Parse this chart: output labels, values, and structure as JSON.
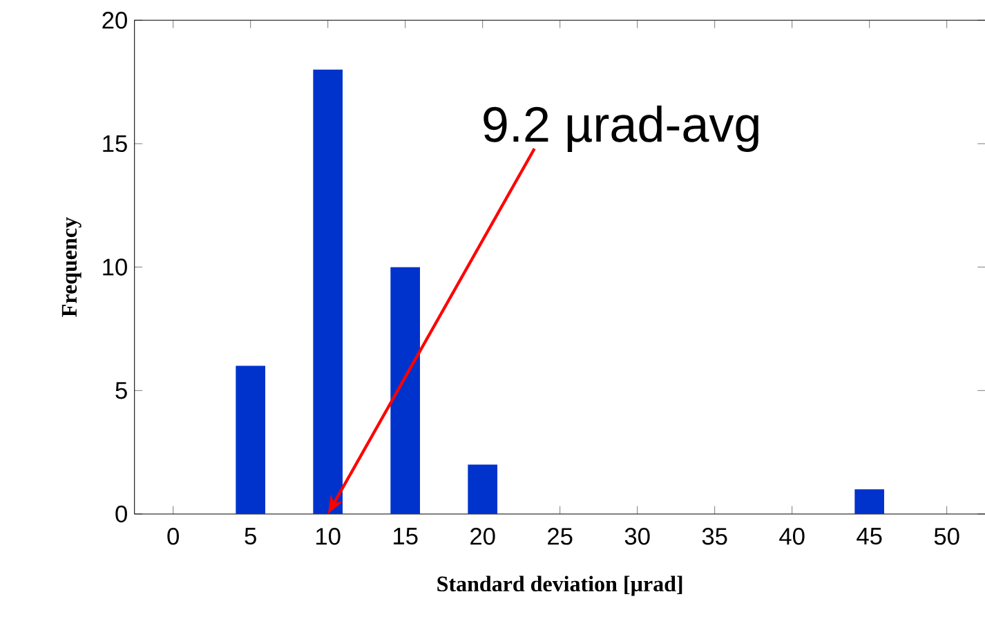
{
  "chart_data": {
    "type": "bar",
    "xlabel": "Standard deviation [µrad]",
    "ylabel": "Frequency",
    "categories": [
      "0",
      "5",
      "10",
      "15",
      "20",
      "25",
      "30",
      "35",
      "40",
      "45",
      "50"
    ],
    "values": [
      0,
      6,
      18,
      10,
      2,
      0,
      0,
      0,
      0,
      1,
      0
    ],
    "color": "#0033cc",
    "ylim": [
      0,
      20
    ],
    "yticks": [
      0,
      5,
      10,
      15,
      20
    ],
    "annotations": [
      {
        "text": "9.2 µrad-avg",
        "x": "10",
        "y": 0
      }
    ]
  }
}
